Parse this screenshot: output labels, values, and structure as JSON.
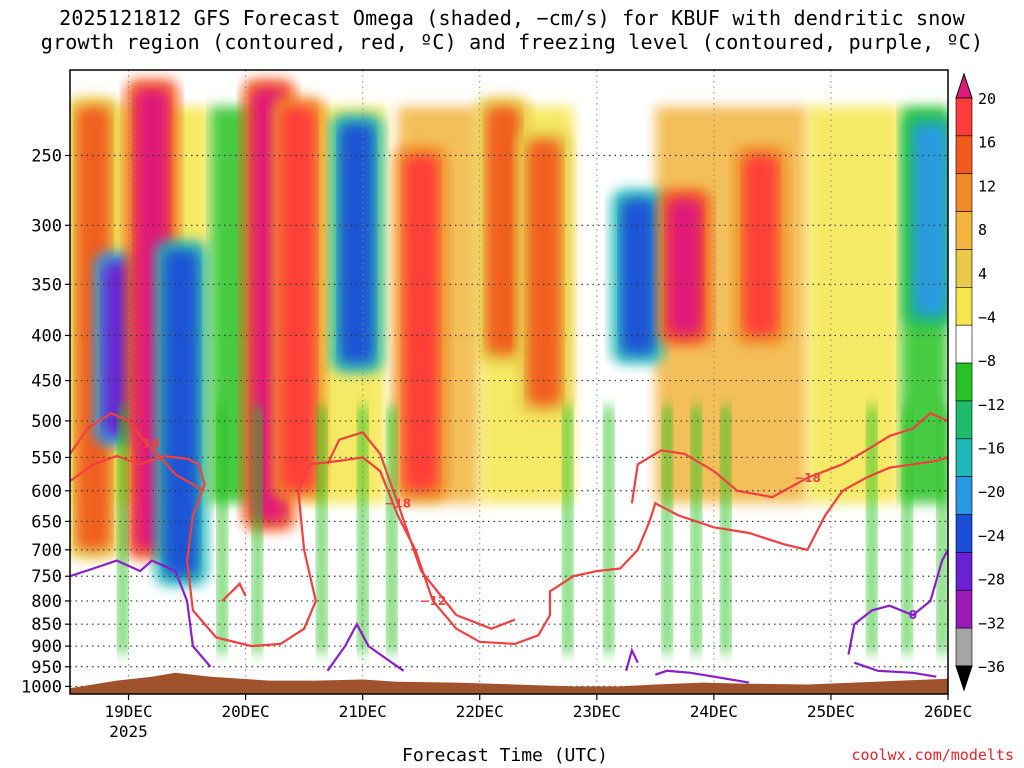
{
  "title_line1": "2025121812 GFS Forecast Omega (shaded, −cm/s) for KBUF with dendritic snow",
  "title_line2": "growth region (contoured, red, ºC) and freezing level (contoured, purple, ºC)",
  "credit": "coolwx.com/modelts",
  "chart_data": {
    "type": "heatmap",
    "title": "2025121812 GFS Forecast Omega (shaded, −cm/s) for KBUF with dendritic snow growth region (contoured, red, ºC) and freezing level (contoured, purple, ºC)",
    "xlabel": "Forecast Time (UTC)",
    "ylabel": "",
    "x_ticks": [
      "19DEC",
      "20DEC",
      "21DEC",
      "22DEC",
      "23DEC",
      "24DEC",
      "25DEC",
      "26DEC"
    ],
    "x_tick_sublabel": "2025",
    "x_range_days": [
      18.5,
      26.0
    ],
    "y_ticks": [
      250,
      300,
      350,
      400,
      450,
      500,
      550,
      600,
      650,
      700,
      750,
      800,
      850,
      900,
      950,
      1000
    ],
    "y_range_hpa": [
      200,
      1020
    ],
    "y_scale": "log-pressure",
    "grid": "dotted",
    "colorbar": {
      "labels": [
        "20",
        "16",
        "12",
        "8",
        "4",
        "−4",
        "−8",
        "−12",
        "−16",
        "−20",
        "−24",
        "−28",
        "−32",
        "−36"
      ],
      "colors": [
        "#e0197d",
        "#ff3b3b",
        "#f25a1e",
        "#f28c28",
        "#f2b43c",
        "#e8c94a",
        "#f5e64b",
        "#ffffff",
        "#27c324",
        "#1fba6d",
        "#1fb7b7",
        "#2a9ae6",
        "#1b4fd8",
        "#6a21d2",
        "#9a1ab8",
        "#a5a5a5",
        "#000000"
      ],
      "legend_placement": "right"
    },
    "omega_columns": [
      {
        "day": 18.7,
        "p_top": 220,
        "p_bot": 700,
        "value": 12
      },
      {
        "day": 18.93,
        "p_top": 330,
        "p_bot": 520,
        "value": -24
      },
      {
        "day": 19.2,
        "p_top": 210,
        "p_bot": 700,
        "value": 20
      },
      {
        "day": 19.45,
        "p_top": 320,
        "p_bot": 750,
        "value": -20
      },
      {
        "day": 20.2,
        "p_top": 210,
        "p_bot": 650,
        "value": 20
      },
      {
        "day": 20.45,
        "p_top": 220,
        "p_bot": 600,
        "value": 16
      },
      {
        "day": 20.95,
        "p_top": 230,
        "p_bot": 430,
        "value": -20
      },
      {
        "day": 21.5,
        "p_top": 250,
        "p_bot": 600,
        "value": 16
      },
      {
        "day": 22.2,
        "p_top": 220,
        "p_bot": 420,
        "value": 12
      },
      {
        "day": 22.55,
        "p_top": 240,
        "p_bot": 480,
        "value": 12
      },
      {
        "day": 23.35,
        "p_top": 280,
        "p_bot": 420,
        "value": -20
      },
      {
        "day": 23.75,
        "p_top": 280,
        "p_bot": 400,
        "value": 20
      },
      {
        "day": 24.4,
        "p_top": 250,
        "p_bot": 400,
        "value": 16
      },
      {
        "day": 25.85,
        "p_top": 230,
        "p_bot": 380,
        "value": -16
      }
    ],
    "dgz_contours": [
      {
        "label": "−12",
        "points": [
          [
            18.5,
            585
          ],
          [
            18.7,
            560
          ],
          [
            18.9,
            548
          ],
          [
            19.1,
            560
          ],
          [
            19.3,
            548
          ],
          [
            19.5,
            552
          ],
          [
            19.6,
            560
          ],
          [
            19.65,
            590
          ],
          [
            19.55,
            640
          ],
          [
            19.5,
            720
          ],
          [
            19.55,
            820
          ],
          [
            19.75,
            880
          ],
          [
            20.05,
            900
          ],
          [
            20.3,
            895
          ],
          [
            20.5,
            860
          ],
          [
            20.6,
            800
          ],
          [
            20.5,
            700
          ],
          [
            20.45,
            600
          ],
          [
            20.55,
            560
          ],
          [
            20.8,
            555
          ],
          [
            21.0,
            550
          ],
          [
            21.15,
            570
          ],
          [
            21.3,
            640
          ],
          [
            21.45,
            700
          ],
          [
            21.6,
            800
          ],
          [
            21.8,
            860
          ],
          [
            22.0,
            890
          ],
          [
            22.3,
            895
          ],
          [
            22.5,
            875
          ],
          [
            22.6,
            830
          ],
          [
            22.6,
            780
          ],
          [
            22.8,
            750
          ],
          [
            23.0,
            740
          ],
          [
            23.2,
            735
          ],
          [
            23.35,
            700
          ],
          [
            23.45,
            650
          ],
          [
            23.5,
            620
          ],
          [
            23.7,
            640
          ],
          [
            24.0,
            660
          ],
          [
            24.3,
            670
          ],
          [
            24.6,
            690
          ],
          [
            24.8,
            700
          ],
          [
            24.95,
            640
          ],
          [
            25.1,
            600
          ],
          [
            25.3,
            580
          ],
          [
            25.5,
            565
          ],
          [
            25.7,
            560
          ],
          [
            25.9,
            555
          ],
          [
            26.0,
            550
          ]
        ]
      },
      {
        "label": "−18",
        "points": [
          [
            18.5,
            545
          ],
          [
            18.65,
            510
          ],
          [
            18.85,
            490
          ],
          [
            19.0,
            500
          ],
          [
            19.15,
            530
          ],
          [
            19.3,
            555
          ],
          [
            19.4,
            575
          ],
          [
            19.55,
            590
          ],
          [
            19.65,
            600
          ]
        ]
      },
      {
        "label": "−18",
        "points": [
          [
            20.7,
            560
          ],
          [
            20.8,
            525
          ],
          [
            21.0,
            515
          ],
          [
            21.15,
            545
          ],
          [
            21.3,
            620
          ],
          [
            21.5,
            740
          ],
          [
            21.8,
            830
          ],
          [
            22.1,
            860
          ],
          [
            22.3,
            840
          ]
        ]
      },
      {
        "label": "−18",
        "points": [
          [
            23.3,
            620
          ],
          [
            23.35,
            560
          ],
          [
            23.55,
            540
          ],
          [
            23.75,
            545
          ],
          [
            24.0,
            570
          ],
          [
            24.2,
            600
          ],
          [
            24.5,
            610
          ],
          [
            24.8,
            580
          ],
          [
            25.1,
            560
          ],
          [
            25.3,
            540
          ],
          [
            25.5,
            520
          ],
          [
            25.7,
            510
          ],
          [
            25.85,
            490
          ],
          [
            26.0,
            500
          ]
        ]
      },
      {
        "label": "",
        "points": [
          [
            19.8,
            800
          ],
          [
            19.95,
            765
          ],
          [
            20.0,
            790
          ]
        ]
      }
    ],
    "freezing_contours": [
      {
        "label": "",
        "points": [
          [
            18.5,
            750
          ],
          [
            18.7,
            735
          ],
          [
            18.9,
            720
          ],
          [
            19.1,
            740
          ],
          [
            19.2,
            720
          ],
          [
            19.4,
            740
          ],
          [
            19.5,
            800
          ],
          [
            19.55,
            900
          ],
          [
            19.7,
            950
          ]
        ]
      },
      {
        "label": "",
        "points": [
          [
            20.7,
            960
          ],
          [
            20.85,
            900
          ],
          [
            20.95,
            850
          ],
          [
            21.05,
            900
          ],
          [
            21.2,
            930
          ],
          [
            21.35,
            960
          ]
        ]
      },
      {
        "label": "",
        "points": [
          [
            23.25,
            960
          ],
          [
            23.3,
            910
          ],
          [
            23.35,
            940
          ]
        ]
      },
      {
        "label": "",
        "points": [
          [
            23.5,
            970
          ],
          [
            23.6,
            960
          ],
          [
            23.8,
            965
          ],
          [
            24.0,
            975
          ],
          [
            24.3,
            990
          ]
        ]
      },
      {
        "label": "0",
        "points": [
          [
            25.15,
            920
          ],
          [
            25.2,
            850
          ],
          [
            25.35,
            820
          ],
          [
            25.5,
            810
          ],
          [
            25.7,
            830
          ],
          [
            25.85,
            800
          ],
          [
            25.95,
            720
          ],
          [
            26.0,
            700
          ]
        ]
      },
      {
        "label": "",
        "points": [
          [
            25.2,
            940
          ],
          [
            25.4,
            960
          ],
          [
            25.7,
            965
          ],
          [
            25.9,
            975
          ]
        ]
      }
    ],
    "annotations": [
      "−12",
      "−18",
      "0"
    ],
    "terrain_color": "#a0522d"
  }
}
